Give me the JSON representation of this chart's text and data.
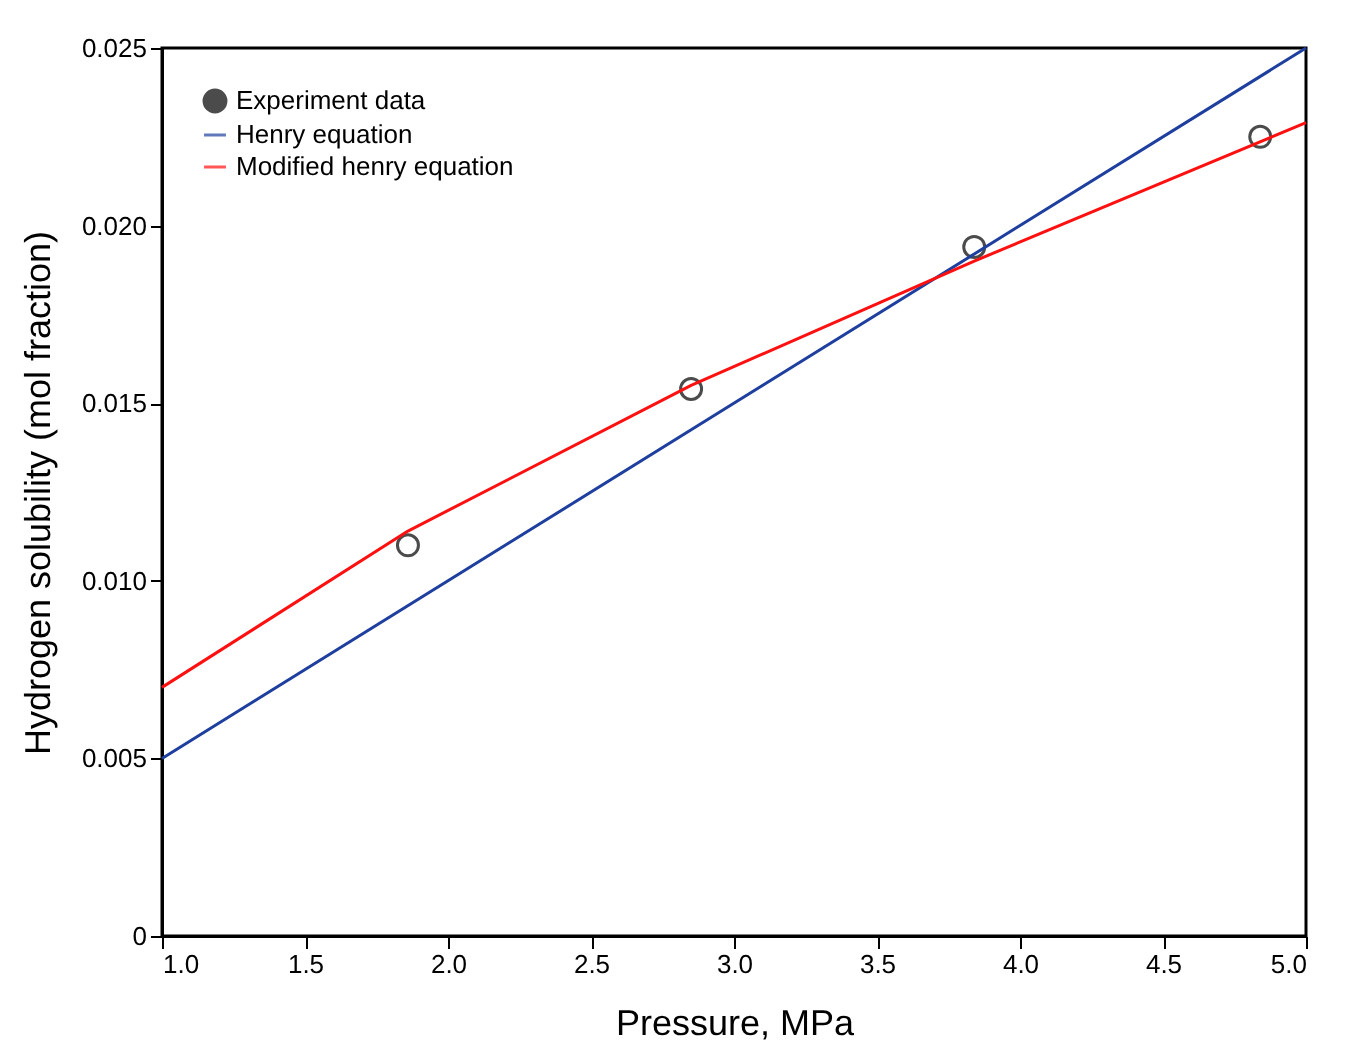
{
  "chart_data": {
    "type": "scatter",
    "xlabel": "Pressure, MPa",
    "ylabel": "Hydrogen solubility (mol fraction)",
    "xlim": [
      1.0,
      5.0
    ],
    "ylim": [
      0,
      0.025
    ],
    "xticks": [
      {
        "value": 1.0,
        "label": "1.0"
      },
      1.5,
      {
        "value": 2.0,
        "label": "2.0"
      },
      2.5,
      {
        "value": 3.0,
        "label": "3.0"
      },
      3.5,
      {
        "value": 4.0,
        "label": "4.0"
      },
      4.5,
      {
        "value": 5.0,
        "label": "5.0"
      }
    ],
    "yticks": [
      {
        "value": 0,
        "label": "0"
      },
      0.005,
      {
        "value": 0.01,
        "label": "0.010"
      },
      0.015,
      {
        "value": 0.02,
        "label": "0.020"
      },
      0.025
    ],
    "grid": false,
    "legend": "top left",
    "series": [
      {
        "name": "Experiment data",
        "marker": "circle",
        "color": "#000000",
        "x": [
          1.86,
          2.85,
          3.84,
          4.84
        ],
        "values": [
          0.011,
          0.0154,
          0.0194,
          0.0225
        ]
      },
      {
        "name": "Henry equation",
        "type": "line",
        "marker": "none",
        "line_style": "solid",
        "color": "#1f3f9f",
        "x": [
          1.0,
          5.0
        ],
        "values": [
          0.005,
          0.025
        ]
      },
      {
        "name": "Modified henry equation",
        "type": "line",
        "marker": "none",
        "line_style": "solid",
        "color": "#ff1010",
        "x": [
          1.0,
          1.86,
          2.85,
          3.84,
          5.0
        ],
        "values": [
          0.007,
          0.0114,
          0.0155,
          0.019,
          0.0229
        ]
      }
    ]
  }
}
